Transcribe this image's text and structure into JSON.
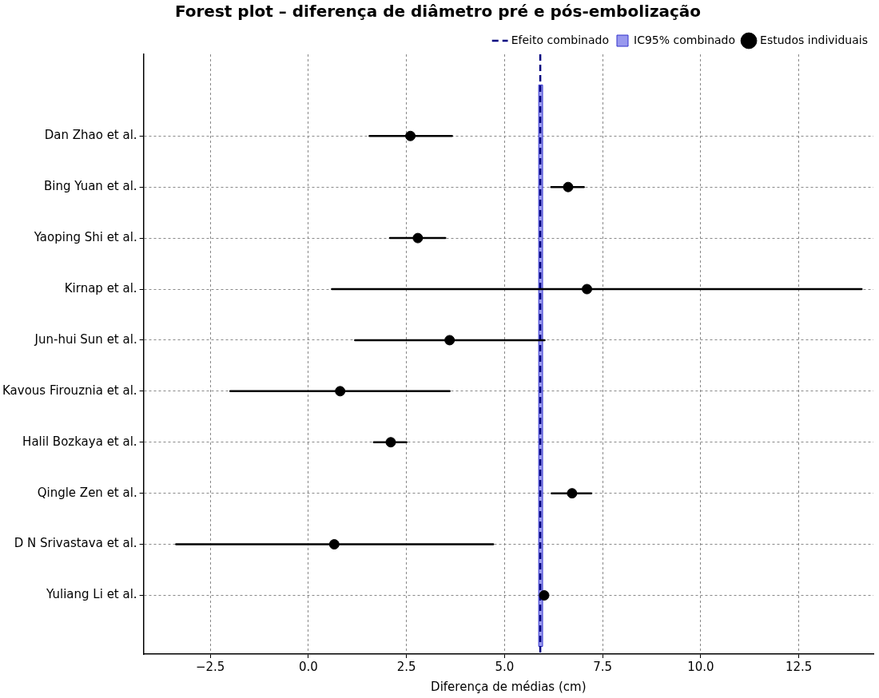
{
  "chart_data": {
    "type": "scatter",
    "orientation": "horizontal",
    "title": "Forest plot – diferença de diâmetro pré e pós-embolização",
    "xlabel": "Diferença de médias (cm)",
    "categories": [
      "Dan Zhao et al.",
      "Bing Yuan et al.",
      "Yaoping Shi et al.",
      "Kirnap et al.",
      "Jun-hui Sun et al.",
      "Kavous Firouznia et al.",
      "Halil Bozkaya et al.",
      "Qingle Zen et al.",
      "D N Srivastava et al.",
      "Yuliang Li et al."
    ],
    "series": [
      {
        "name": "Estudos individuais",
        "type": "scatter",
        "color": "#000000",
        "values": [
          2.6,
          6.62,
          2.79,
          7.1,
          3.6,
          0.81,
          2.1,
          6.72,
          0.66,
          6.01
        ],
        "errors": [
          [
            1.56,
            3.66
          ],
          [
            6.19,
            7.02
          ],
          [
            2.08,
            3.49
          ],
          [
            0.6,
            14.1
          ],
          [
            1.19,
            6.02
          ],
          [
            -1.99,
            3.6
          ],
          [
            1.67,
            2.5
          ],
          [
            6.2,
            7.21
          ],
          [
            -3.37,
            4.71
          ],
          null
        ]
      }
    ],
    "ref_lines": [
      {
        "axis": "x",
        "value": 5.91,
        "label": "Efeito combinado",
        "color": "#000080",
        "line_style": "dashed"
      }
    ],
    "bands": [
      {
        "axis": "x",
        "from": 5.87,
        "to": 5.97,
        "label": "IC95% combinado",
        "color": "#9999ee"
      }
    ],
    "xlim": [
      -4.2,
      14.4
    ],
    "xticks": [
      {
        "value": -2.5,
        "label": "−2.5"
      },
      {
        "value": 0,
        "label": "0.0"
      },
      {
        "value": 2.5,
        "label": "2.5"
      },
      {
        "value": 5,
        "label": "5.0"
      },
      {
        "value": 7.5,
        "label": "7.5"
      },
      {
        "value": 10,
        "label": "10.0"
      },
      {
        "value": 12.5,
        "label": "12.5"
      }
    ],
    "grid": true,
    "legend": "top right",
    "marker": "circle"
  }
}
